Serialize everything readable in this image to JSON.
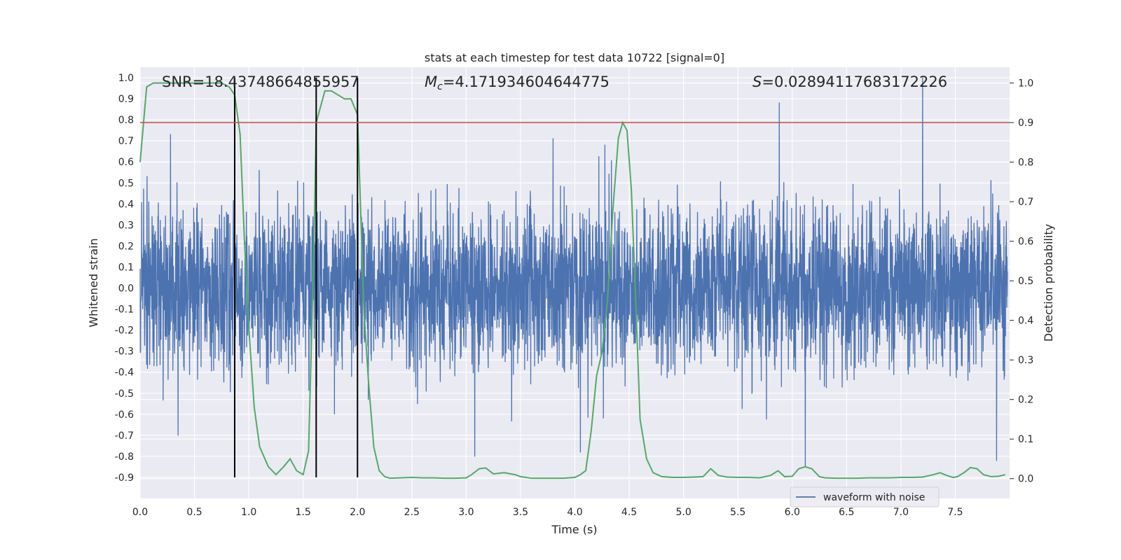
{
  "chart_data": {
    "type": "line",
    "title": "stats at each timestep for test data 10722 [signal=0]",
    "xlabel": "Time (s)",
    "ylabel_left": "Whitened strain",
    "ylabel_right": "Detection probability",
    "xlim": [
      0.0,
      8.0
    ],
    "ylim_left": [
      -1.0,
      1.05
    ],
    "ylim_right": [
      -0.05,
      1.04
    ],
    "x_ticks": [
      0.0,
      0.5,
      1.0,
      1.5,
      2.0,
      2.5,
      3.0,
      3.5,
      4.0,
      4.5,
      5.0,
      5.5,
      6.0,
      6.5,
      7.0,
      7.5
    ],
    "x_tick_labels": [
      "0.0",
      "0.5",
      "1.0",
      "1.5",
      "2.0",
      "2.5",
      "3.0",
      "3.5",
      "4.0",
      "4.5",
      "5.0",
      "5.5",
      "6.0",
      "6.5",
      "7.0",
      "7.5"
    ],
    "y_left_ticks": [
      1.0,
      0.9,
      0.8,
      0.7,
      0.6,
      0.5,
      0.4,
      0.3,
      0.2,
      0.1,
      0.0,
      -0.1,
      -0.2,
      -0.3,
      -0.4,
      -0.5,
      -0.6,
      -0.7,
      -0.8,
      -0.9
    ],
    "y_left_tick_labels": [
      "1.0",
      "0.9",
      "0.8",
      "0.7",
      "0.6",
      "0.5",
      "0.4",
      "0.3",
      "0.2",
      "0.1",
      "0.0",
      "-0.1",
      "-0.2",
      "-0.3",
      "-0.4",
      "-0.5",
      "-0.6",
      "-0.7",
      "-0.8",
      "-0.9"
    ],
    "y_right_ticks": [
      1.0,
      0.9,
      0.8,
      0.7,
      0.6,
      0.5,
      0.4,
      0.3,
      0.2,
      0.1,
      0.0
    ],
    "y_right_tick_labels": [
      "1.0",
      "0.9",
      "0.8",
      "0.7",
      "0.6",
      "0.5",
      "0.4",
      "0.3",
      "0.2",
      "0.1",
      "0.0"
    ],
    "annotations": {
      "snr": "SNR=18.43748664855957",
      "mc_symbol": "M",
      "mc_subscript": "c",
      "mc_value": "=4.171934604644775",
      "s_symbol": "S",
      "s_value": "=0.02894117683172226"
    },
    "threshold": {
      "name": "threshold",
      "value": 0.9,
      "axis": "right",
      "color": "#c44e52"
    },
    "vertical_markers": [
      0.87,
      1.62,
      2.0
    ],
    "legend": {
      "label": "waveform with noise",
      "location": "lower-right"
    },
    "waveform": {
      "name": "waveform with noise",
      "color": "#4c72b0",
      "axis": "left",
      "duration": 7.98,
      "n_points": 4000,
      "seed": 10722,
      "envelope_min": -0.5,
      "envelope_max": 0.5,
      "notable_peaks": [
        {
          "x": 5.88,
          "y": 0.88
        },
        {
          "x": 7.2,
          "y": 1.0
        },
        {
          "x": 0.87,
          "y": 0.71
        },
        {
          "x": 0.28,
          "y": 0.73
        },
        {
          "x": 3.8,
          "y": 0.71
        },
        {
          "x": 6.12,
          "y": -0.85
        },
        {
          "x": 7.88,
          "y": -0.82
        },
        {
          "x": 3.08,
          "y": -0.8
        },
        {
          "x": 4.05,
          "y": -0.78
        },
        {
          "x": 0.35,
          "y": -0.7
        }
      ]
    },
    "probability": {
      "name": "detection probability",
      "color": "#55a868",
      "axis": "right",
      "x": [
        0.0,
        0.06,
        0.12,
        0.2,
        0.3,
        0.4,
        0.5,
        0.6,
        0.68,
        0.75,
        0.82,
        0.87,
        0.92,
        0.96,
        1.0,
        1.05,
        1.1,
        1.18,
        1.25,
        1.32,
        1.38,
        1.44,
        1.5,
        1.55,
        1.6,
        1.62,
        1.7,
        1.76,
        1.82,
        1.88,
        1.94,
        2.0,
        2.06,
        2.1,
        2.15,
        2.2,
        2.25,
        2.3,
        2.4,
        2.5,
        2.6,
        2.7,
        2.8,
        2.9,
        3.0,
        3.05,
        3.12,
        3.18,
        3.25,
        3.35,
        3.45,
        3.5,
        3.6,
        3.7,
        3.8,
        3.9,
        4.0,
        4.05,
        4.1,
        4.15,
        4.2,
        4.25,
        4.3,
        4.35,
        4.4,
        4.44,
        4.48,
        4.52,
        4.56,
        4.6,
        4.66,
        4.72,
        4.8,
        4.9,
        5.0,
        5.1,
        5.18,
        5.25,
        5.32,
        5.4,
        5.5,
        5.6,
        5.7,
        5.8,
        5.87,
        5.93,
        6.0,
        6.06,
        6.12,
        6.18,
        6.25,
        6.3,
        6.4,
        6.5,
        6.6,
        6.7,
        6.8,
        6.9,
        7.0,
        7.1,
        7.2,
        7.3,
        7.36,
        7.42,
        7.48,
        7.52,
        7.58,
        7.64,
        7.7,
        7.76,
        7.83,
        7.9,
        7.96
      ],
      "y": [
        0.8,
        0.99,
        1.0,
        1.0,
        1.0,
        1.0,
        1.0,
        1.0,
        1.0,
        1.0,
        0.99,
        0.97,
        0.87,
        0.6,
        0.38,
        0.18,
        0.08,
        0.03,
        0.01,
        0.03,
        0.05,
        0.02,
        0.01,
        0.07,
        0.6,
        0.9,
        0.98,
        0.98,
        0.97,
        0.96,
        0.96,
        0.92,
        0.42,
        0.25,
        0.08,
        0.02,
        0.005,
        0.001,
        0.002,
        0.003,
        0.002,
        0.002,
        0.001,
        0.001,
        0.002,
        0.01,
        0.025,
        0.027,
        0.012,
        0.015,
        0.01,
        0.005,
        0.001,
        0.001,
        0.001,
        0.001,
        0.003,
        0.01,
        0.02,
        0.12,
        0.26,
        0.32,
        0.45,
        0.68,
        0.86,
        0.9,
        0.88,
        0.73,
        0.45,
        0.15,
        0.05,
        0.015,
        0.005,
        0.003,
        0.003,
        0.004,
        0.005,
        0.025,
        0.008,
        0.004,
        0.003,
        0.003,
        0.002,
        0.008,
        0.02,
        0.005,
        0.006,
        0.025,
        0.03,
        0.025,
        0.005,
        0.002,
        0.001,
        0.001,
        0.001,
        0.002,
        0.002,
        0.002,
        0.003,
        0.003,
        0.004,
        0.01,
        0.015,
        0.008,
        0.003,
        0.005,
        0.015,
        0.028,
        0.025,
        0.01,
        0.005,
        0.006,
        0.01
      ]
    }
  }
}
